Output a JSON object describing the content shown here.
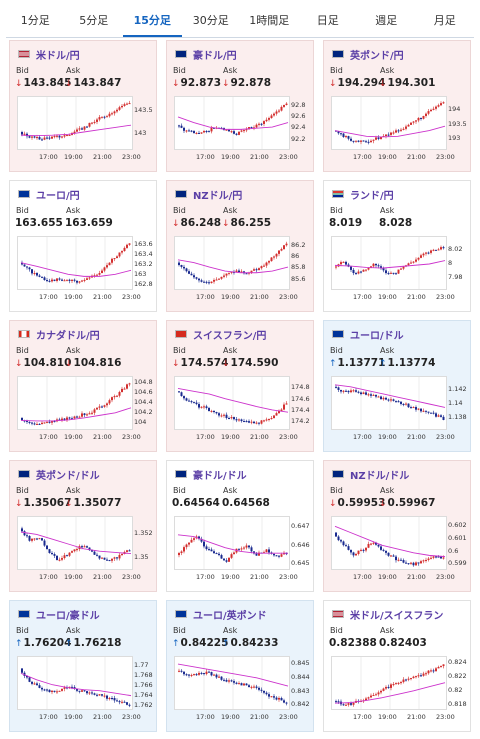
{
  "tabs": [
    {
      "label": "1分足",
      "active": false
    },
    {
      "label": "5分足",
      "active": false
    },
    {
      "label": "15分足",
      "active": true
    },
    {
      "label": "30分足",
      "active": false
    },
    {
      "label": "1時間足",
      "active": false
    },
    {
      "label": "日足",
      "active": false
    },
    {
      "label": "週足",
      "active": false
    },
    {
      "label": "月足",
      "active": false
    }
  ],
  "labels": {
    "bid": "Bid",
    "ask": "Ask"
  },
  "time_ticks": [
    "17:00",
    "19:00",
    "21:00",
    "23:00"
  ],
  "colors": {
    "up_candle": "#d32f2f",
    "down_candle": "#1a2a8f",
    "ma": "#cc33cc",
    "pair_text": "#5b3fa6",
    "down_bg": "#fbeeee",
    "up_bg": "#eaf3fb"
  },
  "cards": [
    {
      "pair": "米ドル/円",
      "flag": "us",
      "direction": "down",
      "bid": "143.845",
      "ask": "143.847",
      "chart_data": {
        "type": "candlestick",
        "x": [
          "17:00",
          "19:00",
          "21:00",
          "23:00"
        ],
        "ylim": [
          142.7,
          143.75
        ],
        "yticks": [
          "143.5",
          "143"
        ],
        "path": [
          143.05,
          142.95,
          142.9,
          142.93,
          142.95,
          143.0,
          143.1,
          143.22,
          143.35,
          143.45,
          143.6,
          143.7
        ],
        "ma": [
          142.98,
          142.97,
          142.98,
          143.0,
          143.05,
          143.1,
          143.15,
          143.2
        ]
      }
    },
    {
      "pair": "豪ドル/円",
      "flag": "au",
      "direction": "down",
      "bid": "92.873",
      "ask": "92.878",
      "chart_data": {
        "type": "candlestick",
        "x": [
          "17:00",
          "19:00",
          "21:00",
          "23:00"
        ],
        "ylim": [
          92.05,
          92.9
        ],
        "yticks": [
          "92.8",
          "92.6",
          "92.4",
          "92.2"
        ],
        "path": [
          92.45,
          92.35,
          92.3,
          92.35,
          92.42,
          92.35,
          92.3,
          92.38,
          92.45,
          92.55,
          92.7,
          92.85
        ],
        "ma": [
          92.6,
          92.5,
          92.42,
          92.38,
          92.38,
          92.4,
          92.42,
          92.5
        ]
      }
    },
    {
      "pair": "英ポンド/円",
      "flag": "gb",
      "direction": "down",
      "bid": "194.294",
      "ask": "194.301",
      "chart_data": {
        "type": "candlestick",
        "x": [
          "17:00",
          "19:00",
          "21:00",
          "23:00"
        ],
        "ylim": [
          192.7,
          194.35
        ],
        "yticks": [
          "194",
          "193.5",
          "193"
        ],
        "path": [
          193.3,
          193.1,
          192.95,
          192.9,
          193.0,
          193.1,
          193.25,
          193.4,
          193.6,
          193.8,
          194.05,
          194.3
        ],
        "ma": [
          193.3,
          193.2,
          193.1,
          193.08,
          193.1,
          193.2,
          193.3,
          193.45
        ]
      }
    },
    {
      "pair": "ユーロ/円",
      "flag": "eu",
      "direction": "flat",
      "bid": "163.655",
      "ask": "163.659",
      "chart_data": {
        "type": "candlestick",
        "x": [
          "17:00",
          "19:00",
          "21:00",
          "23:00"
        ],
        "ylim": [
          162.75,
          163.7
        ],
        "yticks": [
          "163.6",
          "163.4",
          "163.2",
          "163",
          "162.8"
        ],
        "path": [
          163.25,
          163.1,
          162.95,
          162.9,
          162.92,
          162.9,
          162.88,
          162.95,
          163.05,
          163.25,
          163.45,
          163.65
        ],
        "ma": [
          163.25,
          163.18,
          163.1,
          163.02,
          162.98,
          162.98,
          163.02,
          163.1
        ]
      }
    },
    {
      "pair": "NZドル/円",
      "flag": "nz",
      "direction": "down",
      "bid": "86.248",
      "ask": "86.255",
      "chart_data": {
        "type": "candlestick",
        "x": [
          "17:00",
          "19:00",
          "21:00",
          "23:00"
        ],
        "ylim": [
          85.45,
          86.3
        ],
        "yticks": [
          "86.2",
          "86",
          "85.8",
          "85.6"
        ],
        "path": [
          85.9,
          85.75,
          85.62,
          85.55,
          85.6,
          85.68,
          85.75,
          85.72,
          85.78,
          85.9,
          86.05,
          86.25
        ],
        "ma": [
          85.95,
          85.9,
          85.82,
          85.75,
          85.72,
          85.72,
          85.75,
          85.82
        ]
      }
    },
    {
      "pair": "ランド/円",
      "flag": "za",
      "direction": "flat",
      "bid": "8.019",
      "ask": "8.028",
      "chart_data": {
        "type": "candlestick",
        "x": [
          "17:00",
          "19:00",
          "21:00",
          "23:00"
        ],
        "ylim": [
          7.965,
          8.035
        ],
        "yticks": [
          "8.02",
          "8",
          "7.98"
        ],
        "path": [
          7.995,
          8.005,
          7.985,
          7.99,
          8.0,
          7.99,
          7.985,
          7.995,
          8.005,
          8.015,
          8.02,
          8.025
        ],
        "ma": [
          7.998,
          7.997,
          7.995,
          7.994,
          7.996,
          7.998,
          8.0,
          8.005
        ]
      }
    },
    {
      "pair": "カナダドル/円",
      "flag": "ca",
      "direction": "down",
      "bid": "104.810",
      "ask": "104.816",
      "chart_data": {
        "type": "candlestick",
        "x": [
          "17:00",
          "19:00",
          "21:00",
          "23:00"
        ],
        "ylim": [
          103.9,
          104.85
        ],
        "yticks": [
          "104.8",
          "104.6",
          "104.4",
          "104.2",
          "104"
        ],
        "path": [
          104.1,
          104.0,
          103.98,
          104.02,
          104.05,
          104.1,
          104.15,
          104.2,
          104.3,
          104.45,
          104.6,
          104.8
        ],
        "ma": [
          104.05,
          104.04,
          104.04,
          104.06,
          104.1,
          104.15,
          104.2,
          104.3
        ]
      }
    },
    {
      "pair": "スイスフラン/円",
      "flag": "ch",
      "direction": "down",
      "bid": "174.574",
      "ask": "174.590",
      "chart_data": {
        "type": "candlestick",
        "x": [
          "17:00",
          "19:00",
          "21:00",
          "23:00"
        ],
        "ylim": [
          174.1,
          174.95
        ],
        "yticks": [
          "174.8",
          "174.6",
          "174.4",
          "174.2"
        ],
        "path": [
          174.75,
          174.6,
          174.5,
          174.45,
          174.35,
          174.3,
          174.25,
          174.2,
          174.18,
          174.25,
          174.35,
          174.55
        ],
        "ma": [
          174.8,
          174.75,
          174.7,
          174.62,
          174.55,
          174.48,
          174.42,
          174.38
        ]
      }
    },
    {
      "pair": "ユーロ/ドル",
      "flag": "eu",
      "direction": "up",
      "bid": "1.13771",
      "ask": "1.13774",
      "chart_data": {
        "type": "candlestick",
        "x": [
          "17:00",
          "19:00",
          "21:00",
          "23:00"
        ],
        "ylim": [
          1.1365,
          1.1435
        ],
        "yticks": [
          "1.142",
          "1.14",
          "1.138"
        ],
        "path": [
          1.1425,
          1.1418,
          1.142,
          1.1415,
          1.1412,
          1.1408,
          1.1405,
          1.14,
          1.1395,
          1.139,
          1.1385,
          1.1378
        ],
        "ma": [
          1.1428,
          1.1425,
          1.142,
          1.1415,
          1.141,
          1.1405,
          1.14,
          1.1395
        ]
      }
    },
    {
      "pair": "英ポンド/ドル",
      "flag": "gb",
      "direction": "down",
      "bid": "1.35067",
      "ask": "1.35077",
      "chart_data": {
        "type": "candlestick",
        "x": [
          "17:00",
          "19:00",
          "21:00",
          "23:00"
        ],
        "ylim": [
          1.3492,
          1.3532
        ],
        "yticks": [
          "1.352",
          "1.35"
        ],
        "path": [
          1.3525,
          1.3515,
          1.3518,
          1.3505,
          1.3498,
          1.3505,
          1.351,
          1.3508,
          1.35,
          1.3498,
          1.3502,
          1.3507
        ],
        "ma": [
          1.3522,
          1.352,
          1.3516,
          1.3512,
          1.3508,
          1.3506,
          1.3505,
          1.3504
        ]
      }
    },
    {
      "pair": "豪ドル/ドル",
      "flag": "au",
      "direction": "flat",
      "bid": "0.64564",
      "ask": "0.64568",
      "chart_data": {
        "type": "candlestick",
        "x": [
          "17:00",
          "19:00",
          "21:00",
          "23:00"
        ],
        "ylim": [
          0.6448,
          0.6474
        ],
        "yticks": [
          "0.647",
          "0.646",
          "0.645"
        ],
        "path": [
          0.6455,
          0.646,
          0.6465,
          0.6458,
          0.6455,
          0.6452,
          0.6458,
          0.646,
          0.6455,
          0.6458,
          0.6454,
          0.6456
        ],
        "ma": [
          0.6466,
          0.6465,
          0.6462,
          0.6459,
          0.6457,
          0.6456,
          0.6456,
          0.6456
        ]
      }
    },
    {
      "pair": "NZドル/ドル",
      "flag": "nz",
      "direction": "down",
      "bid": "0.59953",
      "ask": "0.59967",
      "chart_data": {
        "type": "candlestick",
        "x": [
          "17:00",
          "19:00",
          "21:00",
          "23:00"
        ],
        "ylim": [
          0.5987,
          0.6025
        ],
        "yticks": [
          "0.602",
          "0.601",
          "0.6",
          "0.599"
        ],
        "path": [
          0.6015,
          0.6005,
          0.5998,
          0.6002,
          0.6008,
          0.6,
          0.5995,
          0.5992,
          0.599,
          0.5993,
          0.5995,
          0.5996
        ],
        "ma": [
          0.602,
          0.6015,
          0.601,
          0.6005,
          0.6002,
          0.5999,
          0.5997,
          0.5996
        ]
      }
    },
    {
      "pair": "ユーロ/豪ドル",
      "flag": "eu",
      "direction": "up",
      "bid": "1.76204",
      "ask": "1.76218",
      "chart_data": {
        "type": "candlestick",
        "x": [
          "17:00",
          "19:00",
          "21:00",
          "23:00"
        ],
        "ylim": [
          1.7615,
          1.7712
        ],
        "yticks": [
          "1.77",
          "1.768",
          "1.766",
          "1.764",
          "1.762"
        ],
        "path": [
          1.7695,
          1.767,
          1.7655,
          1.7648,
          1.7652,
          1.7658,
          1.765,
          1.7645,
          1.764,
          1.7635,
          1.763,
          1.7622
        ],
        "ma": [
          1.7685,
          1.7672,
          1.7662,
          1.7656,
          1.7652,
          1.765,
          1.7645,
          1.764
        ]
      }
    },
    {
      "pair": "ユーロ/英ポンド",
      "flag": "eu",
      "direction": "up",
      "bid": "0.84225",
      "ask": "0.84233",
      "chart_data": {
        "type": "candlestick",
        "x": [
          "17:00",
          "19:00",
          "21:00",
          "23:00"
        ],
        "ylim": [
          0.8418,
          0.8453
        ],
        "yticks": [
          "0.845",
          "0.844",
          "0.843",
          "0.842"
        ],
        "path": [
          0.8445,
          0.8442,
          0.8443,
          0.8444,
          0.8441,
          0.8438,
          0.8436,
          0.8435,
          0.8432,
          0.8428,
          0.8425,
          0.8422
        ],
        "ma": [
          0.845,
          0.8448,
          0.8446,
          0.8444,
          0.8442,
          0.844,
          0.8437,
          0.8434
        ]
      }
    },
    {
      "pair": "米ドル/スイスフラン",
      "flag": "us",
      "direction": "flat",
      "bid": "0.82388",
      "ask": "0.82403",
      "chart_data": {
        "type": "candlestick",
        "x": [
          "17:00",
          "19:00",
          "21:00",
          "23:00"
        ],
        "ylim": [
          0.8175,
          0.8245
        ],
        "yticks": [
          "0.824",
          "0.822",
          "0.82",
          "0.818"
        ],
        "path": [
          0.8185,
          0.818,
          0.8182,
          0.8188,
          0.8195,
          0.8202,
          0.821,
          0.8215,
          0.822,
          0.8225,
          0.823,
          0.824
        ],
        "ma": [
          0.8182,
          0.8183,
          0.8186,
          0.819,
          0.8195,
          0.82,
          0.8206,
          0.8212
        ]
      }
    }
  ]
}
